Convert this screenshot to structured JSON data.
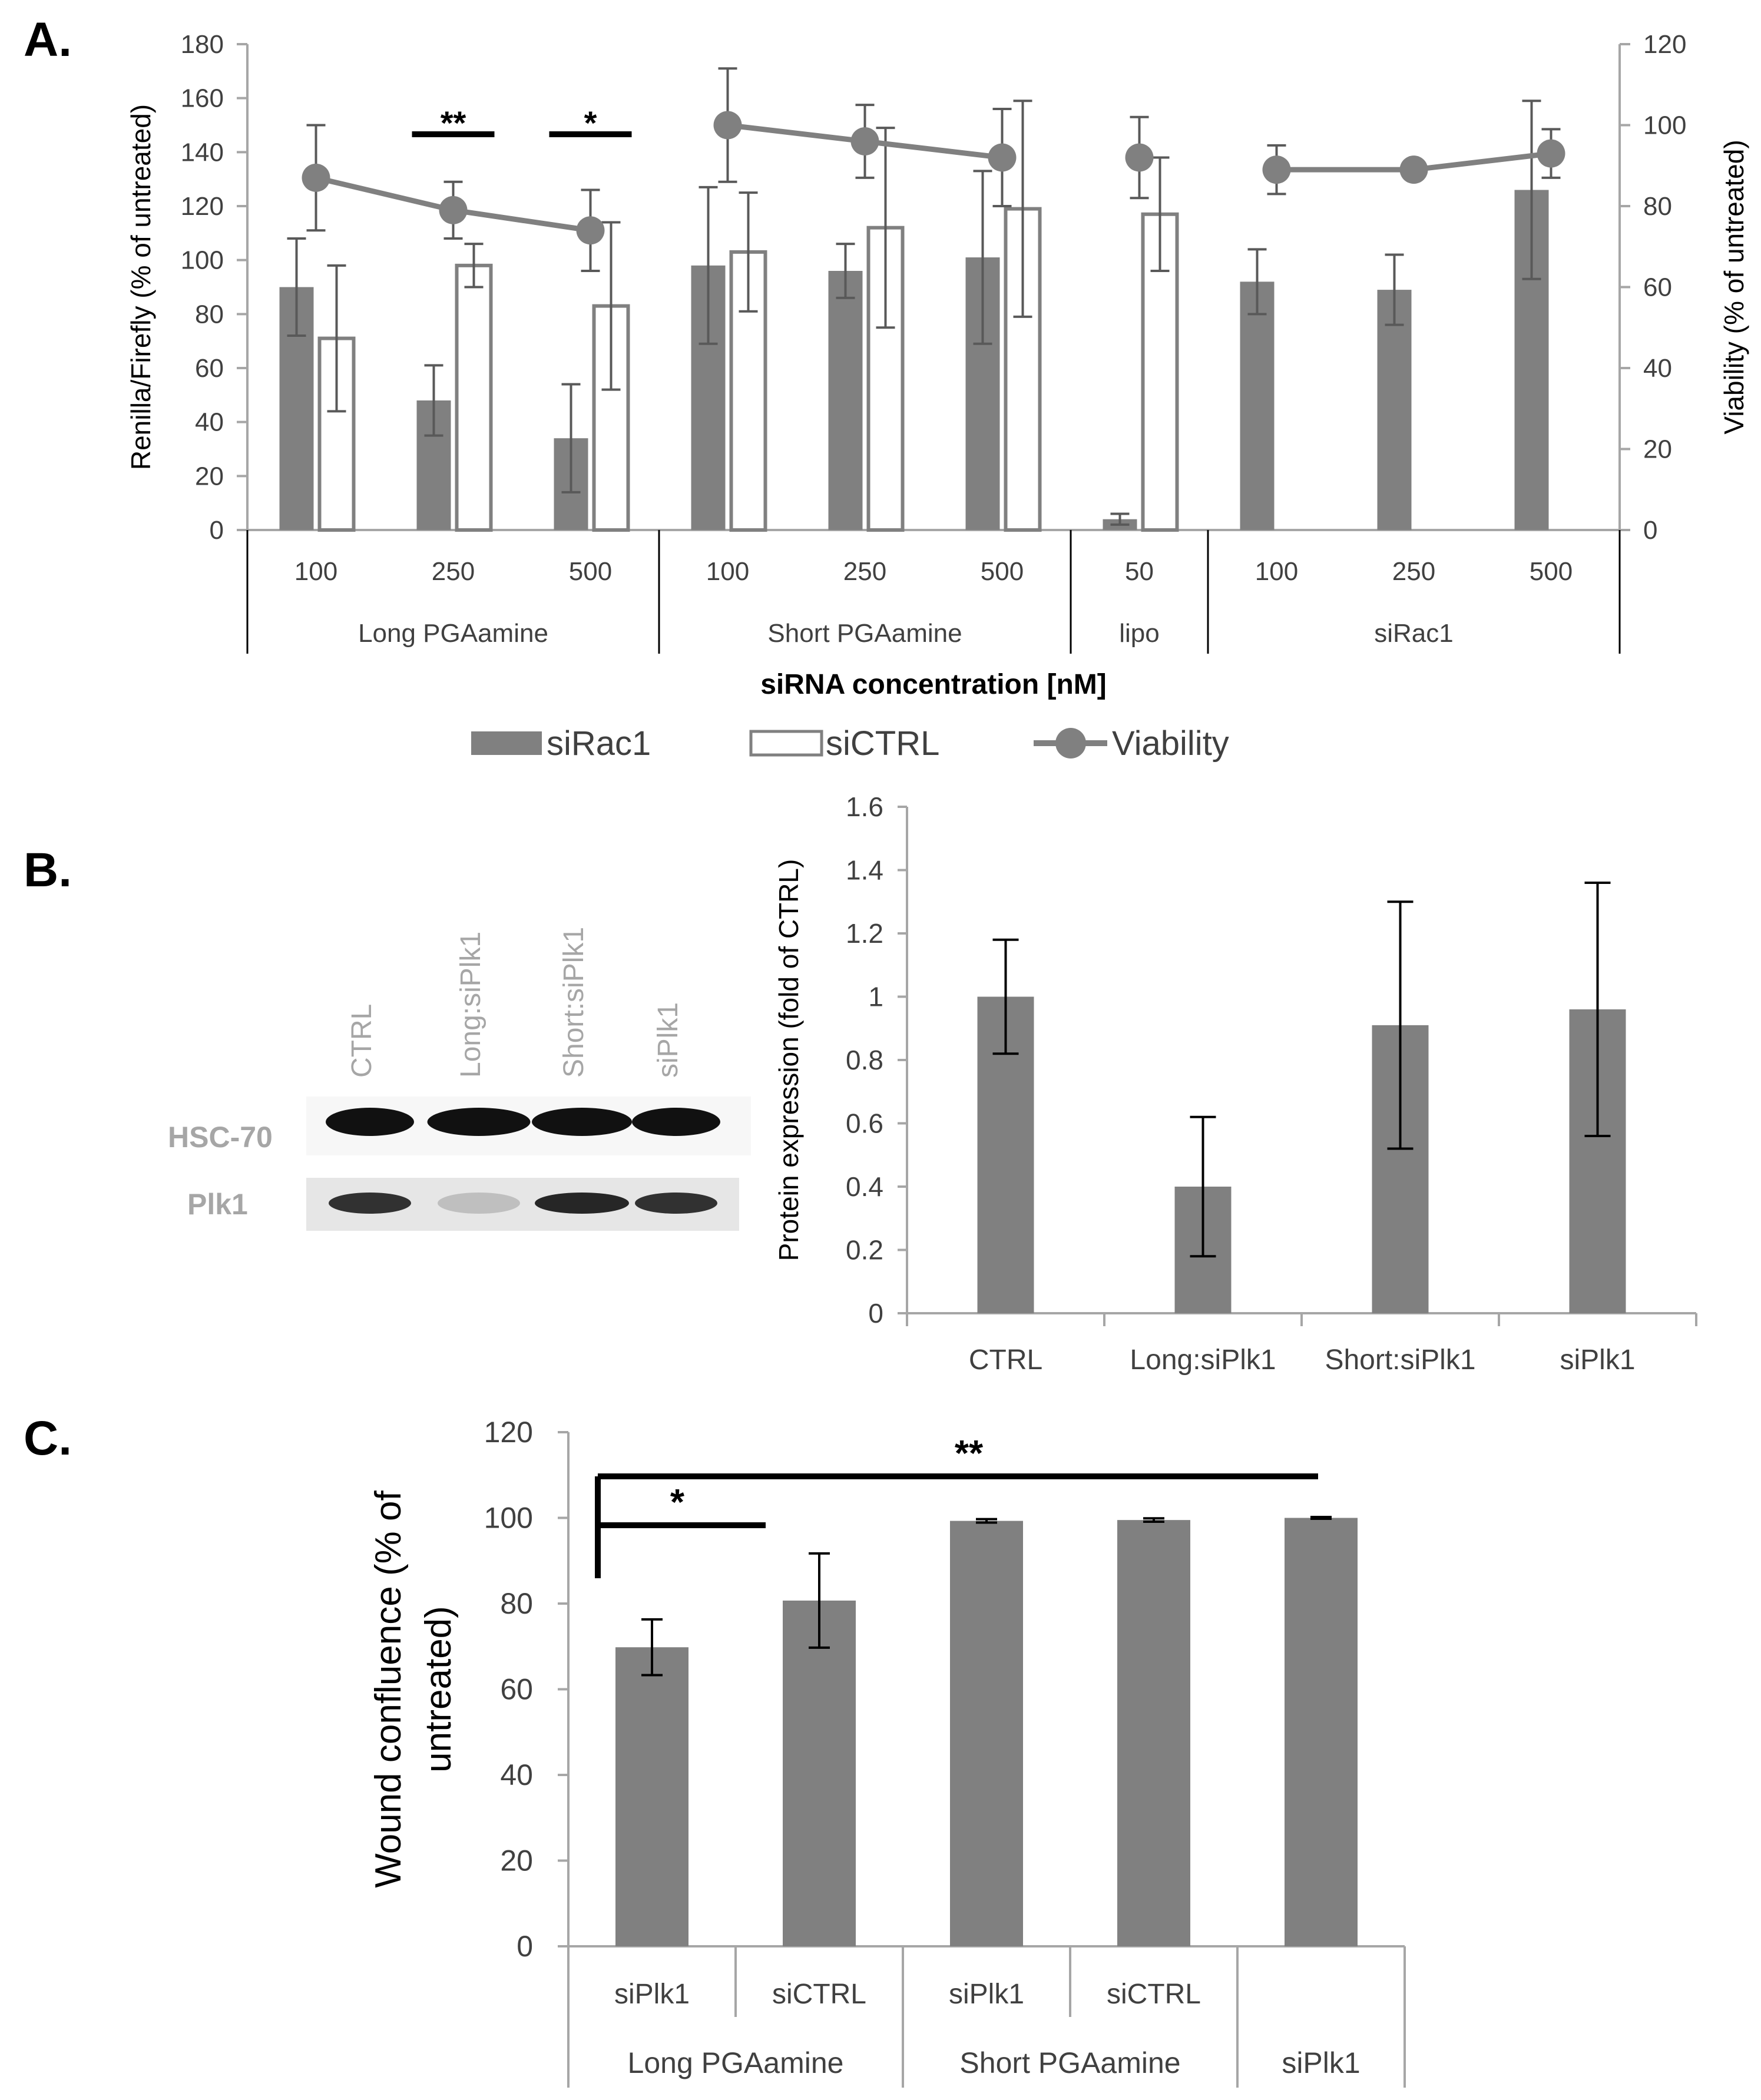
{
  "panels": {
    "a": "A.",
    "b": "B.",
    "c": "C."
  },
  "blot": {
    "lanes": [
      "CTRL",
      "Long:siPlk1",
      "Short:siPlk1",
      "siPlk1"
    ],
    "rows": [
      "HSC-70",
      "Plk1"
    ]
  },
  "chart_data": [
    {
      "id": "A",
      "type": "bar",
      "categories": [
        "100",
        "250",
        "500",
        "100",
        "250",
        "500",
        "50",
        "100",
        "250",
        "500"
      ],
      "groups": [
        {
          "label": "Long PGAamine",
          "span": 3
        },
        {
          "label": "Short PGAamine",
          "span": 3
        },
        {
          "label": "lipo",
          "span": 1
        },
        {
          "label": "siRac1",
          "span": 3
        }
      ],
      "series": [
        {
          "name": "siRac1",
          "style": "filled",
          "values": [
            90,
            48,
            34,
            98,
            96,
            101,
            4,
            92,
            89,
            126
          ],
          "errors": [
            18,
            13,
            20,
            29,
            10,
            32,
            2,
            12,
            13,
            33
          ]
        },
        {
          "name": "siCTRL",
          "style": "open",
          "values": [
            71,
            98,
            83,
            103,
            112,
            119,
            117,
            null,
            null,
            null
          ],
          "errors": [
            27,
            8,
            31,
            22,
            37,
            40,
            21,
            null,
            null,
            null
          ]
        },
        {
          "name": "Viability",
          "style": "line",
          "axis": "right",
          "values": [
            87,
            79,
            74,
            100,
            96,
            92,
            92,
            89,
            89,
            93
          ],
          "errors": [
            13,
            7,
            10,
            14,
            9,
            12,
            10,
            6,
            null,
            6
          ]
        }
      ],
      "significance": [
        {
          "category_index": 1,
          "label": "**"
        },
        {
          "category_index": 2,
          "label": "*"
        }
      ],
      "xlabel": "siRNA concentration [nM]",
      "ylabel": "Renilla/Firefly (% of untreated)",
      "y2label": "Viability (% of untreated)",
      "ylim": [
        0,
        180
      ],
      "yticks": [
        0,
        20,
        40,
        60,
        80,
        100,
        120,
        140,
        160,
        180
      ],
      "y2lim": [
        0,
        120
      ],
      "y2ticks": [
        0,
        20,
        40,
        60,
        80,
        100,
        120
      ],
      "legend": "bottom"
    },
    {
      "id": "B",
      "type": "bar",
      "categories": [
        "CTRL",
        "Long:siPlk1",
        "Short:siPlk1",
        "siPlk1"
      ],
      "values": [
        1.0,
        0.4,
        0.91,
        0.96
      ],
      "errors": [
        0.18,
        0.22,
        0.39,
        0.4
      ],
      "ylabel": "Protein expression (fold of CTRL)",
      "ylim": [
        0,
        1.6
      ],
      "yticks": [
        "0",
        "0.2",
        "0.4",
        "0.6",
        "0.8",
        "1",
        "1.2",
        "1.4",
        "1.6"
      ]
    },
    {
      "id": "C",
      "type": "bar",
      "categories": [
        "siPlk1",
        "siCTRL",
        "siPlk1",
        "siCTRL",
        ""
      ],
      "groups": [
        {
          "label": "Long PGAamine",
          "span": 2
        },
        {
          "label": "Short PGAamine",
          "span": 2
        },
        {
          "label": "siPlk1",
          "span": 1
        }
      ],
      "values": [
        69.8,
        80.7,
        99.3,
        99.5,
        100
      ],
      "errors": [
        6.5,
        11,
        0.4,
        0.4,
        0.2
      ],
      "ylabel_lines": [
        "Wound confluence (% of",
        "untreated)"
      ],
      "ylim": [
        0,
        120
      ],
      "yticks": [
        0,
        20,
        40,
        60,
        80,
        100,
        120
      ],
      "significance": [
        {
          "from_index": 0,
          "to_index": 1,
          "label": "*"
        },
        {
          "from_index": 0,
          "to_index": 4,
          "label": "**"
        }
      ]
    }
  ]
}
